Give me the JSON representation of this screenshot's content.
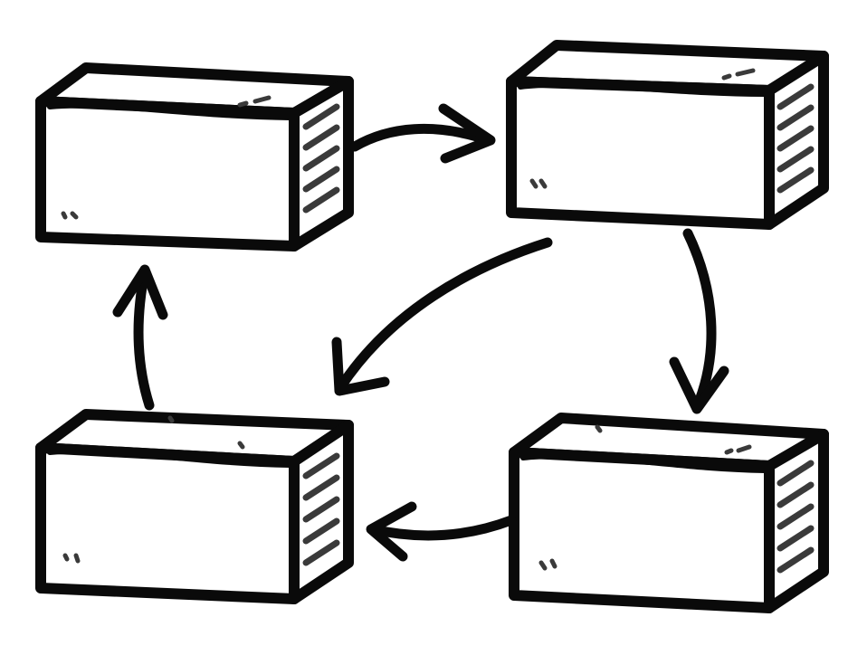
{
  "diagram": {
    "type": "cycle",
    "node_count": 4,
    "nodes": [
      {
        "id": "box-top-left",
        "label": ""
      },
      {
        "id": "box-top-right",
        "label": ""
      },
      {
        "id": "box-bottom-right",
        "label": ""
      },
      {
        "id": "box-bottom-left",
        "label": ""
      }
    ],
    "edges": [
      {
        "from": "box-top-left",
        "to": "box-top-right"
      },
      {
        "from": "box-top-right",
        "to": "box-bottom-right"
      },
      {
        "from": "box-top-right",
        "to": "box-bottom-left"
      },
      {
        "from": "box-bottom-right",
        "to": "box-bottom-left"
      },
      {
        "from": "box-bottom-left",
        "to": "box-top-left"
      }
    ],
    "colors": {
      "ink": "#0a0a0a",
      "fill": "#ffffff",
      "hatch": "#3a3a3a"
    }
  }
}
